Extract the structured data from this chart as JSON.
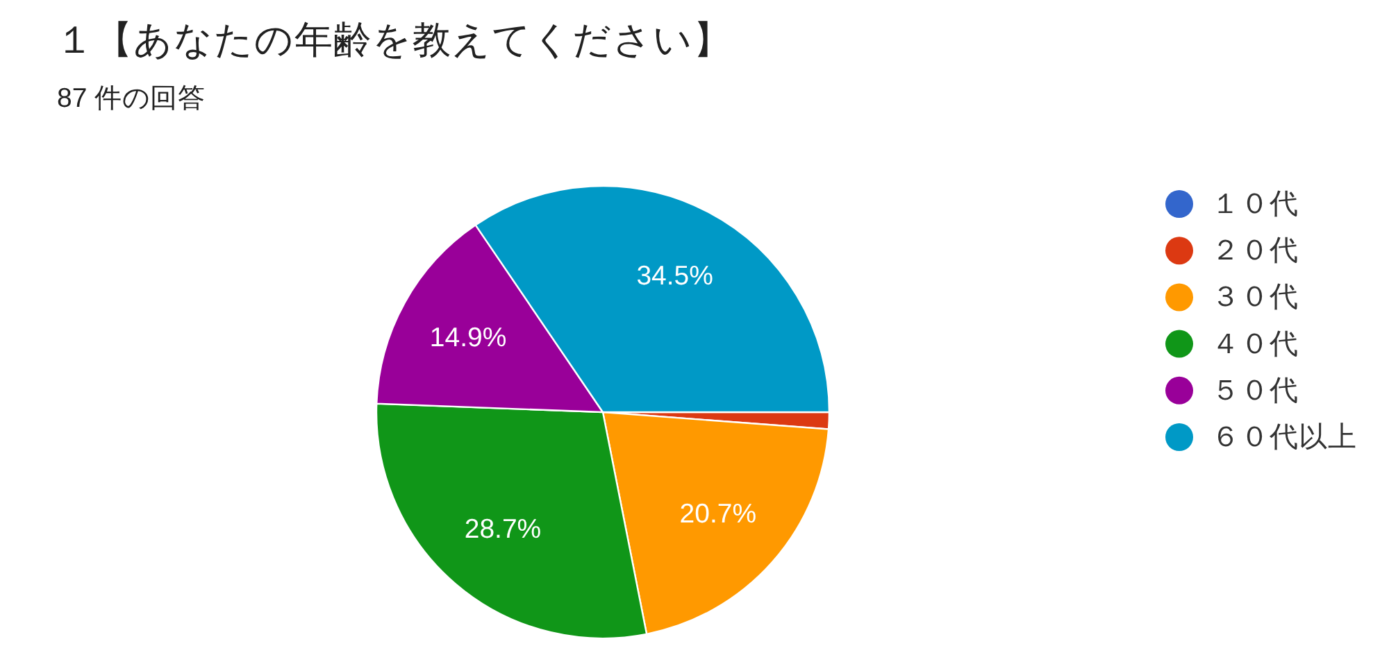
{
  "chart_data": {
    "type": "pie",
    "title": "１【あなたの年齢を教えてください】",
    "subtitle": "87 件の回答",
    "categories": [
      "１０代",
      "２０代",
      "３０代",
      "４０代",
      "５０代",
      "６０代以上"
    ],
    "values": [
      0,
      1.2,
      20.7,
      28.7,
      14.9,
      34.5
    ],
    "colors": [
      "#3366cc",
      "#dc3912",
      "#ff9900",
      "#109618",
      "#990099",
      "#0099c6"
    ],
    "value_labels": [
      null,
      null,
      "20.7%",
      "28.7%",
      "14.9%",
      "34.5%"
    ],
    "legend": "right"
  }
}
